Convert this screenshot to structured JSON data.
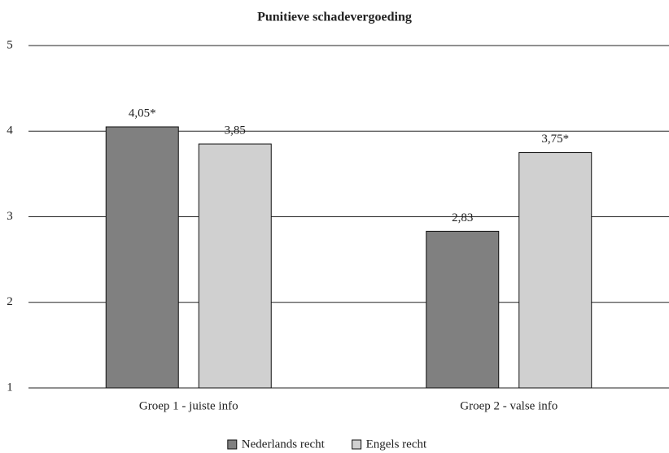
{
  "chart_data": {
    "type": "bar",
    "title": "Punitieve schadevergoeding",
    "categories": [
      "Groep 1 - juiste info",
      "Groep 2 - valse info"
    ],
    "series": [
      {
        "name": "Nederlands recht",
        "color": "#808080",
        "values": [
          4.05,
          2.83
        ],
        "value_labels": [
          "4,05*",
          "2,83"
        ]
      },
      {
        "name": "Engels recht",
        "color": "#d0d0d0",
        "values": [
          3.85,
          3.75
        ],
        "value_labels": [
          "3,85",
          "3,75*"
        ]
      }
    ],
    "ylim": [
      1,
      5
    ],
    "yticks": [
      1,
      2,
      3,
      4,
      5
    ],
    "grid": true,
    "legend": "bottom"
  }
}
